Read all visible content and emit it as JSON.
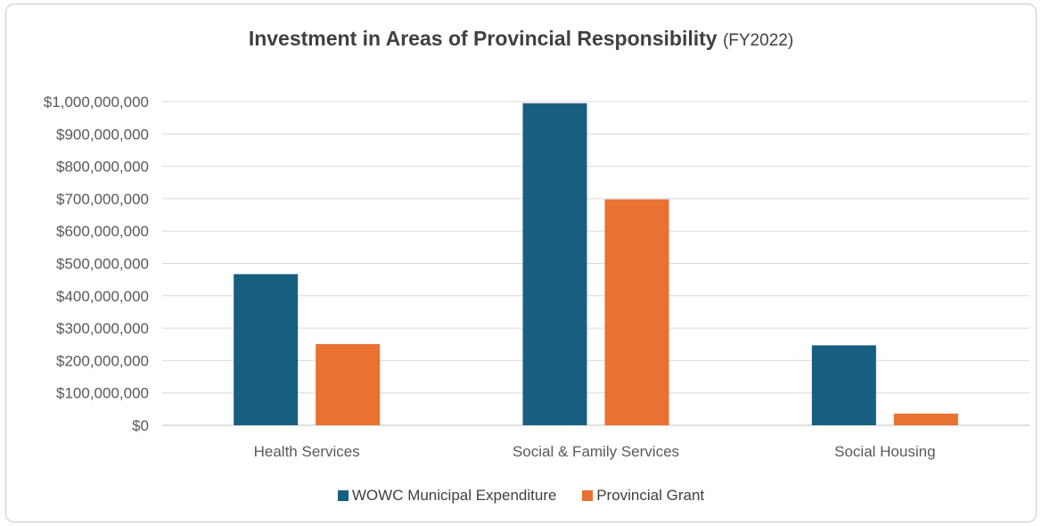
{
  "title": "Investment in Areas of Provincial Responsibility",
  "title_suffix": "(FY2022)",
  "chart_data": {
    "type": "bar",
    "title": "Investment in Areas of Provincial Responsibility (FY2022)",
    "categories": [
      "Health Services",
      "Social & Family Services",
      "Social Housing"
    ],
    "series": [
      {
        "name": "WOWC Municipal Expenditure",
        "color": "#175f80",
        "values": [
          467000000,
          995000000,
          247000000
        ]
      },
      {
        "name": "Provincial Grant",
        "color": "#e97132",
        "values": [
          251000000,
          698000000,
          36000000
        ]
      }
    ],
    "ylim": [
      0,
      1000000000
    ],
    "yticks": [
      0,
      100000000,
      200000000,
      300000000,
      400000000,
      500000000,
      600000000,
      700000000,
      800000000,
      900000000,
      1000000000
    ],
    "ytick_labels": [
      "$0",
      "$100,000,000",
      "$200,000,000",
      "$300,000,000",
      "$400,000,000",
      "$500,000,000",
      "$600,000,000",
      "$700,000,000",
      "$800,000,000",
      "$900,000,000",
      "$1,000,000,000"
    ],
    "xlabel": "",
    "ylabel": "",
    "grid": true,
    "legend": "bottom"
  }
}
